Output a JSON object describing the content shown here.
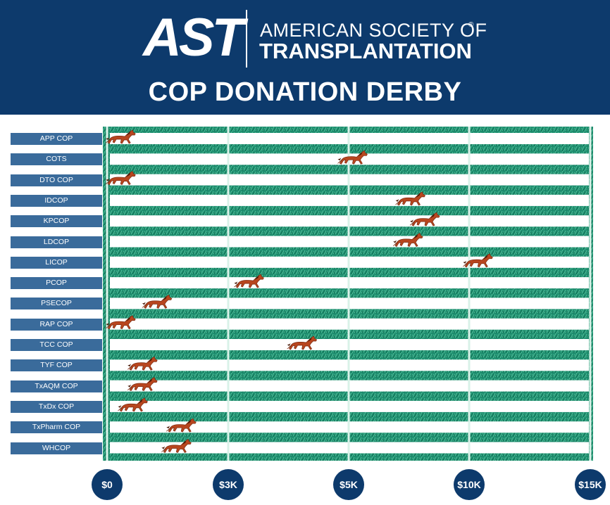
{
  "header": {
    "logo_text": "AST",
    "org_line1": "AMERICAN SOCIETY OF",
    "org_line2": "TRANSPLANTATION",
    "registered": "®",
    "title": "COP DONATION DERBY"
  },
  "colors": {
    "header_bg": "#0d3a6c",
    "turf": "#1f8f70",
    "lane": "#ffffff",
    "label_bg": "#3a6b9b",
    "horse": "#b8461f"
  },
  "chart_data": {
    "type": "bar",
    "marker": "horse-icon",
    "categories": [
      "APP COP",
      "COTS",
      "DTO COP",
      "IDCOP",
      "KPCOP",
      "LDCOP",
      "LICOP",
      "PCOP",
      "PSECOP",
      "RAP COP",
      "TCC COP",
      "TYF COP",
      "TxAQM COP",
      "TxDx COP",
      "TxPharm COP",
      "WHCOP"
    ],
    "values": [
      250,
      5100,
      250,
      7500,
      8100,
      7400,
      10300,
      2900,
      1000,
      250,
      4000,
      700,
      700,
      500,
      1500,
      1400
    ],
    "xticks": [
      0,
      2500,
      5000,
      10000,
      15000
    ],
    "xtick_labels": [
      "$0",
      "$3K",
      "$5K",
      "$10K",
      "$15K"
    ],
    "xlim": [
      0,
      15000
    ],
    "axis_note": "piecewise-linear: tick marks evenly spaced",
    "grid": true
  }
}
